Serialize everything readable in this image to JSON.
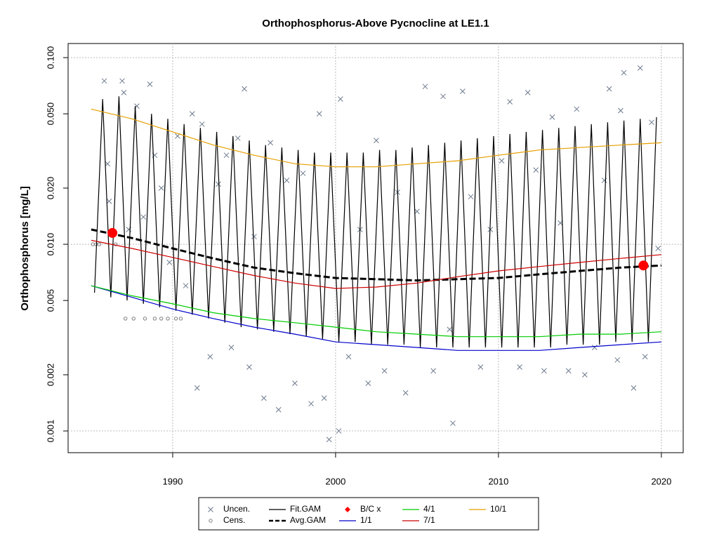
{
  "chart_data": {
    "type": "line",
    "title": "Orthophosphorus-Above Pycnocline at LE1.1",
    "y_label": "Orthophosphorus [mg/L]",
    "log_y": true,
    "grid": true,
    "xlim": [
      1983.58,
      2021.34
    ],
    "xticks": [
      1990,
      2000,
      2010,
      2020
    ],
    "ylim": [
      0.000765,
      0.119
    ],
    "yticks": [
      0.001,
      0.002,
      0.005,
      {
        "value": 0.01,
        "label": "0.010"
      },
      {
        "value": 0.02,
        "label": "0.020"
      },
      {
        "value": 0.05,
        "label": "0.050"
      },
      {
        "value": 0.1,
        "label": "0.100"
      }
    ],
    "legend": "bottom",
    "series": [
      {
        "name": "Uncen.",
        "kind": "x",
        "color": "#6c7a8c",
        "x": [
          1985.8,
          1986.0,
          1986.1,
          1986.9,
          1987.0,
          1987.3,
          1987.8,
          1988.2,
          1988.6,
          1988.9,
          1989.3,
          1989.8,
          1990.3,
          1990.8,
          1991.2,
          1991.5,
          1991.8,
          1992.3,
          1992.8,
          1993.3,
          1993.6,
          1994.0,
          1994.4,
          1994.7,
          1995.0,
          1995.6,
          1996.0,
          1996.5,
          1997.0,
          1997.5,
          1998.0,
          1998.5,
          1999.0,
          1999.3,
          1999.6,
          2000.2,
          2000.3,
          2000.8,
          2001.5,
          2002.0,
          2002.5,
          2003.0,
          2003.8,
          2004.3,
          2005.0,
          2005.5,
          2006.0,
          2006.6,
          2007.0,
          2007.2,
          2007.8,
          2008.3,
          2008.9,
          2009.5,
          2010.2,
          2010.7,
          2011.3,
          2011.8,
          2012.3,
          2012.8,
          2013.3,
          2013.8,
          2014.3,
          2014.8,
          2015.3,
          2015.9,
          2016.5,
          2016.8,
          2017.3,
          2017.5,
          2017.7,
          2018.3,
          2018.7,
          2019.0,
          2019.4,
          2019.8
        ],
        "values": [
          0.075,
          0.027,
          0.017,
          0.075,
          0.065,
          0.012,
          0.055,
          0.014,
          0.072,
          0.03,
          0.02,
          0.008,
          0.038,
          0.006,
          0.05,
          0.0017,
          0.044,
          0.0025,
          0.021,
          0.03,
          0.0028,
          0.037,
          0.068,
          0.0022,
          0.011,
          0.0015,
          0.035,
          0.0013,
          0.022,
          0.0018,
          0.024,
          0.0014,
          0.05,
          0.0015,
          0.0009,
          0.001,
          0.06,
          0.0025,
          0.012,
          0.0018,
          0.036,
          0.0021,
          0.019,
          0.0016,
          0.015,
          0.07,
          0.0021,
          0.062,
          0.0035,
          0.0011,
          0.066,
          0.018,
          0.0022,
          0.012,
          0.028,
          0.058,
          0.0022,
          0.065,
          0.025,
          0.0021,
          0.048,
          0.013,
          0.0021,
          0.053,
          0.002,
          0.0028,
          0.022,
          0.068,
          0.0024,
          0.052,
          0.083,
          0.0017,
          0.088,
          0.0025,
          0.045,
          0.0095
        ]
      },
      {
        "name": "Cens.",
        "kind": "circle",
        "color": "#808080",
        "x": [
          1985.1,
          1985.3,
          1985.5,
          1986.5,
          1987.1,
          1987.6,
          1988.3,
          1988.9,
          1989.3,
          1989.7,
          1990.2,
          1990.5
        ],
        "values": [
          0.01,
          0.01,
          0.01,
          0.01,
          0.004,
          0.004,
          0.004,
          0.004,
          0.004,
          0.004,
          0.004,
          0.004
        ]
      },
      {
        "name": "Fit.GAM",
        "kind": "line",
        "color": "#000000",
        "x": [
          1985.2,
          1985.7,
          1986.2,
          1986.7,
          1987.2,
          1987.7,
          1988.2,
          1988.7,
          1989.2,
          1989.7,
          1990.2,
          1990.7,
          1991.2,
          1991.7,
          1992.2,
          1992.7,
          1993.2,
          1993.7,
          1994.2,
          1994.7,
          1995.2,
          1995.7,
          1996.2,
          1996.7,
          1997.2,
          1997.7,
          1998.2,
          1998.7,
          1999.2,
          1999.7,
          2000.2,
          2000.7,
          2001.2,
          2001.7,
          2002.2,
          2002.7,
          2003.2,
          2003.7,
          2004.2,
          2004.7,
          2005.2,
          2005.7,
          2006.2,
          2006.7,
          2007.2,
          2007.7,
          2008.2,
          2008.7,
          2009.2,
          2009.7,
          2010.2,
          2010.7,
          2011.2,
          2011.7,
          2012.2,
          2012.7,
          2013.2,
          2013.7,
          2014.2,
          2014.7,
          2015.2,
          2015.7,
          2016.2,
          2016.7,
          2017.2,
          2017.7,
          2018.2,
          2018.7,
          2019.2,
          2019.7
        ],
        "values": [
          0.0055,
          0.06,
          0.0052,
          0.062,
          0.005,
          0.055,
          0.0048,
          0.05,
          0.0046,
          0.047,
          0.0044,
          0.044,
          0.0042,
          0.042,
          0.004,
          0.04,
          0.0038,
          0.038,
          0.0036,
          0.036,
          0.0035,
          0.034,
          0.0034,
          0.033,
          0.0033,
          0.032,
          0.0032,
          0.031,
          0.0031,
          0.031,
          0.003,
          0.031,
          0.003,
          0.031,
          0.0029,
          0.032,
          0.0029,
          0.032,
          0.0029,
          0.033,
          0.0028,
          0.034,
          0.0028,
          0.035,
          0.0028,
          0.036,
          0.0028,
          0.037,
          0.0028,
          0.038,
          0.0028,
          0.039,
          0.0028,
          0.04,
          0.0028,
          0.041,
          0.0028,
          0.042,
          0.0029,
          0.043,
          0.0029,
          0.044,
          0.0029,
          0.045,
          0.003,
          0.046,
          0.003,
          0.047,
          0.003,
          0.048
        ]
      },
      {
        "name": "Avg.GAM",
        "kind": "dashed",
        "color": "#000000",
        "x": [
          1985,
          1987.5,
          1990,
          1992.5,
          1995,
          1997.5,
          2000,
          2002.5,
          2005,
          2007.5,
          2010,
          2012.5,
          2015,
          2017.5,
          2020
        ],
        "values": [
          0.012,
          0.0108,
          0.0095,
          0.0084,
          0.0075,
          0.007,
          0.0066,
          0.0065,
          0.0064,
          0.0065,
          0.0066,
          0.0069,
          0.0072,
          0.0075,
          0.0077
        ]
      },
      {
        "name": "B/C x",
        "kind": "dot",
        "color": "#ff0000",
        "x": [
          1986.3,
          2018.9
        ],
        "values": [
          0.0115,
          0.0077
        ]
      },
      {
        "name": "1/1",
        "kind": "line",
        "color": "#0000cc",
        "x": [
          1985,
          1987.5,
          1990,
          1992.5,
          1995,
          1997.5,
          2000,
          2002.5,
          2005,
          2007.5,
          2010,
          2012.5,
          2015,
          2017.5,
          2020
        ],
        "values": [
          0.006,
          0.0052,
          0.0045,
          0.004,
          0.0036,
          0.0033,
          0.003,
          0.0029,
          0.0028,
          0.0027,
          0.0027,
          0.0027,
          0.0028,
          0.0029,
          0.003
        ]
      },
      {
        "name": "4/1",
        "kind": "line",
        "color": "#00cc00",
        "x": [
          1985,
          1987.5,
          1990,
          1992.5,
          1995,
          1997.5,
          2000,
          2002.5,
          2005,
          2007.5,
          2010,
          2012.5,
          2015,
          2017.5,
          2020
        ],
        "values": [
          0.006,
          0.0053,
          0.0048,
          0.0043,
          0.004,
          0.0038,
          0.0036,
          0.0034,
          0.0033,
          0.0032,
          0.0032,
          0.0032,
          0.0033,
          0.0033,
          0.0034
        ]
      },
      {
        "name": "7/1",
        "kind": "line",
        "color": "#cc0000",
        "x": [
          1985,
          1987.5,
          1990,
          1992.5,
          1995,
          1997.5,
          2000,
          2002.5,
          2005,
          2007.5,
          2010,
          2012.5,
          2015,
          2017.5,
          2020
        ],
        "values": [
          0.0105,
          0.0095,
          0.0085,
          0.0076,
          0.0068,
          0.0062,
          0.0058,
          0.0059,
          0.0062,
          0.0067,
          0.0072,
          0.0076,
          0.008,
          0.0084,
          0.0088
        ]
      },
      {
        "name": "10/1",
        "kind": "line",
        "color": "#e69f00",
        "x": [
          1985,
          1987.5,
          1990,
          1992.5,
          1995,
          1997.5,
          2000,
          2002.5,
          2005,
          2007.5,
          2010,
          2012.5,
          2015,
          2017.5,
          2020
        ],
        "values": [
          0.053,
          0.047,
          0.04,
          0.034,
          0.03,
          0.027,
          0.026,
          0.026,
          0.027,
          0.028,
          0.03,
          0.032,
          0.033,
          0.034,
          0.035
        ]
      }
    ]
  }
}
